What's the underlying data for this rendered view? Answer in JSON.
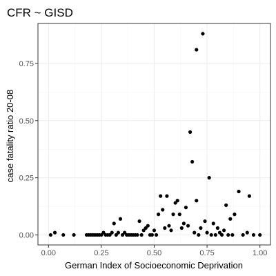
{
  "chart_data": {
    "type": "scatter",
    "title": "CFR ~ GISD",
    "xlabel": "German Index of Socioeconomic Deprivation",
    "ylabel": "case fatality ratio 20-08",
    "xlim": [
      -0.05,
      1.05
    ],
    "ylim": [
      -0.044,
      0.925
    ],
    "x_ticks": [
      0.0,
      0.25,
      0.5,
      0.75,
      1.0
    ],
    "x_tick_labels": [
      "0.00",
      "0.25",
      "0.50",
      "0.75",
      "1.00"
    ],
    "y_ticks": [
      0.0,
      0.25,
      0.5,
      0.75
    ],
    "y_tick_labels": [
      "0.00",
      "0.25",
      "0.50",
      "0.75"
    ],
    "grid": true,
    "point_color": "#000000",
    "points": [
      {
        "x": 0.01,
        "y": 0.0
      },
      {
        "x": 0.03,
        "y": 0.01
      },
      {
        "x": 0.07,
        "y": 0.0
      },
      {
        "x": 0.12,
        "y": 0.0
      },
      {
        "x": 0.18,
        "y": 0.0
      },
      {
        "x": 0.19,
        "y": 0.0
      },
      {
        "x": 0.2,
        "y": 0.0
      },
      {
        "x": 0.21,
        "y": 0.0
      },
      {
        "x": 0.22,
        "y": 0.0
      },
      {
        "x": 0.23,
        "y": 0.0
      },
      {
        "x": 0.24,
        "y": 0.0
      },
      {
        "x": 0.25,
        "y": 0.0
      },
      {
        "x": 0.26,
        "y": 0.01
      },
      {
        "x": 0.27,
        "y": 0.0
      },
      {
        "x": 0.28,
        "y": 0.0
      },
      {
        "x": 0.29,
        "y": 0.0
      },
      {
        "x": 0.3,
        "y": 0.01
      },
      {
        "x": 0.31,
        "y": 0.05
      },
      {
        "x": 0.32,
        "y": 0.0
      },
      {
        "x": 0.33,
        "y": 0.01
      },
      {
        "x": 0.34,
        "y": 0.07
      },
      {
        "x": 0.35,
        "y": 0.0
      },
      {
        "x": 0.36,
        "y": 0.01
      },
      {
        "x": 0.37,
        "y": 0.0
      },
      {
        "x": 0.38,
        "y": 0.0
      },
      {
        "x": 0.39,
        "y": 0.0
      },
      {
        "x": 0.4,
        "y": 0.0
      },
      {
        "x": 0.41,
        "y": 0.0
      },
      {
        "x": 0.42,
        "y": 0.0
      },
      {
        "x": 0.43,
        "y": 0.06
      },
      {
        "x": 0.44,
        "y": 0.0
      },
      {
        "x": 0.45,
        "y": 0.02
      },
      {
        "x": 0.46,
        "y": 0.03
      },
      {
        "x": 0.47,
        "y": 0.04
      },
      {
        "x": 0.48,
        "y": 0.0
      },
      {
        "x": 0.49,
        "y": 0.0
      },
      {
        "x": 0.5,
        "y": 0.02
      },
      {
        "x": 0.51,
        "y": 0.0
      },
      {
        "x": 0.52,
        "y": 0.09
      },
      {
        "x": 0.53,
        "y": 0.17
      },
      {
        "x": 0.54,
        "y": 0.11
      },
      {
        "x": 0.55,
        "y": 0.03
      },
      {
        "x": 0.56,
        "y": 0.17
      },
      {
        "x": 0.57,
        "y": 0.04
      },
      {
        "x": 0.58,
        "y": 0.02
      },
      {
        "x": 0.59,
        "y": 0.09
      },
      {
        "x": 0.6,
        "y": 0.14
      },
      {
        "x": 0.61,
        "y": 0.15
      },
      {
        "x": 0.62,
        "y": 0.09
      },
      {
        "x": 0.63,
        "y": 0.03
      },
      {
        "x": 0.64,
        "y": 0.05
      },
      {
        "x": 0.65,
        "y": 0.12
      },
      {
        "x": 0.66,
        "y": 0.04
      },
      {
        "x": 0.67,
        "y": 0.45
      },
      {
        "x": 0.68,
        "y": 0.32
      },
      {
        "x": 0.69,
        "y": 0.01
      },
      {
        "x": 0.7,
        "y": 0.81
      },
      {
        "x": 0.7,
        "y": 0.15
      },
      {
        "x": 0.71,
        "y": 0.0
      },
      {
        "x": 0.72,
        "y": 0.03
      },
      {
        "x": 0.73,
        "y": 0.88
      },
      {
        "x": 0.74,
        "y": 0.06
      },
      {
        "x": 0.75,
        "y": 0.01
      },
      {
        "x": 0.76,
        "y": 0.25
      },
      {
        "x": 0.77,
        "y": 0.0
      },
      {
        "x": 0.78,
        "y": 0.05
      },
      {
        "x": 0.79,
        "y": 0.0
      },
      {
        "x": 0.8,
        "y": 0.03
      },
      {
        "x": 0.81,
        "y": 0.01
      },
      {
        "x": 0.82,
        "y": 0.0
      },
      {
        "x": 0.83,
        "y": 0.02
      },
      {
        "x": 0.84,
        "y": 0.13
      },
      {
        "x": 0.85,
        "y": 0.0
      },
      {
        "x": 0.86,
        "y": 0.07
      },
      {
        "x": 0.87,
        "y": 0.0
      },
      {
        "x": 0.88,
        "y": 0.09
      },
      {
        "x": 0.9,
        "y": 0.19
      },
      {
        "x": 0.92,
        "y": 0.0
      },
      {
        "x": 0.94,
        "y": 0.01
      },
      {
        "x": 0.95,
        "y": 0.17
      },
      {
        "x": 0.97,
        "y": 0.0
      },
      {
        "x": 1.0,
        "y": 0.0
      }
    ]
  }
}
